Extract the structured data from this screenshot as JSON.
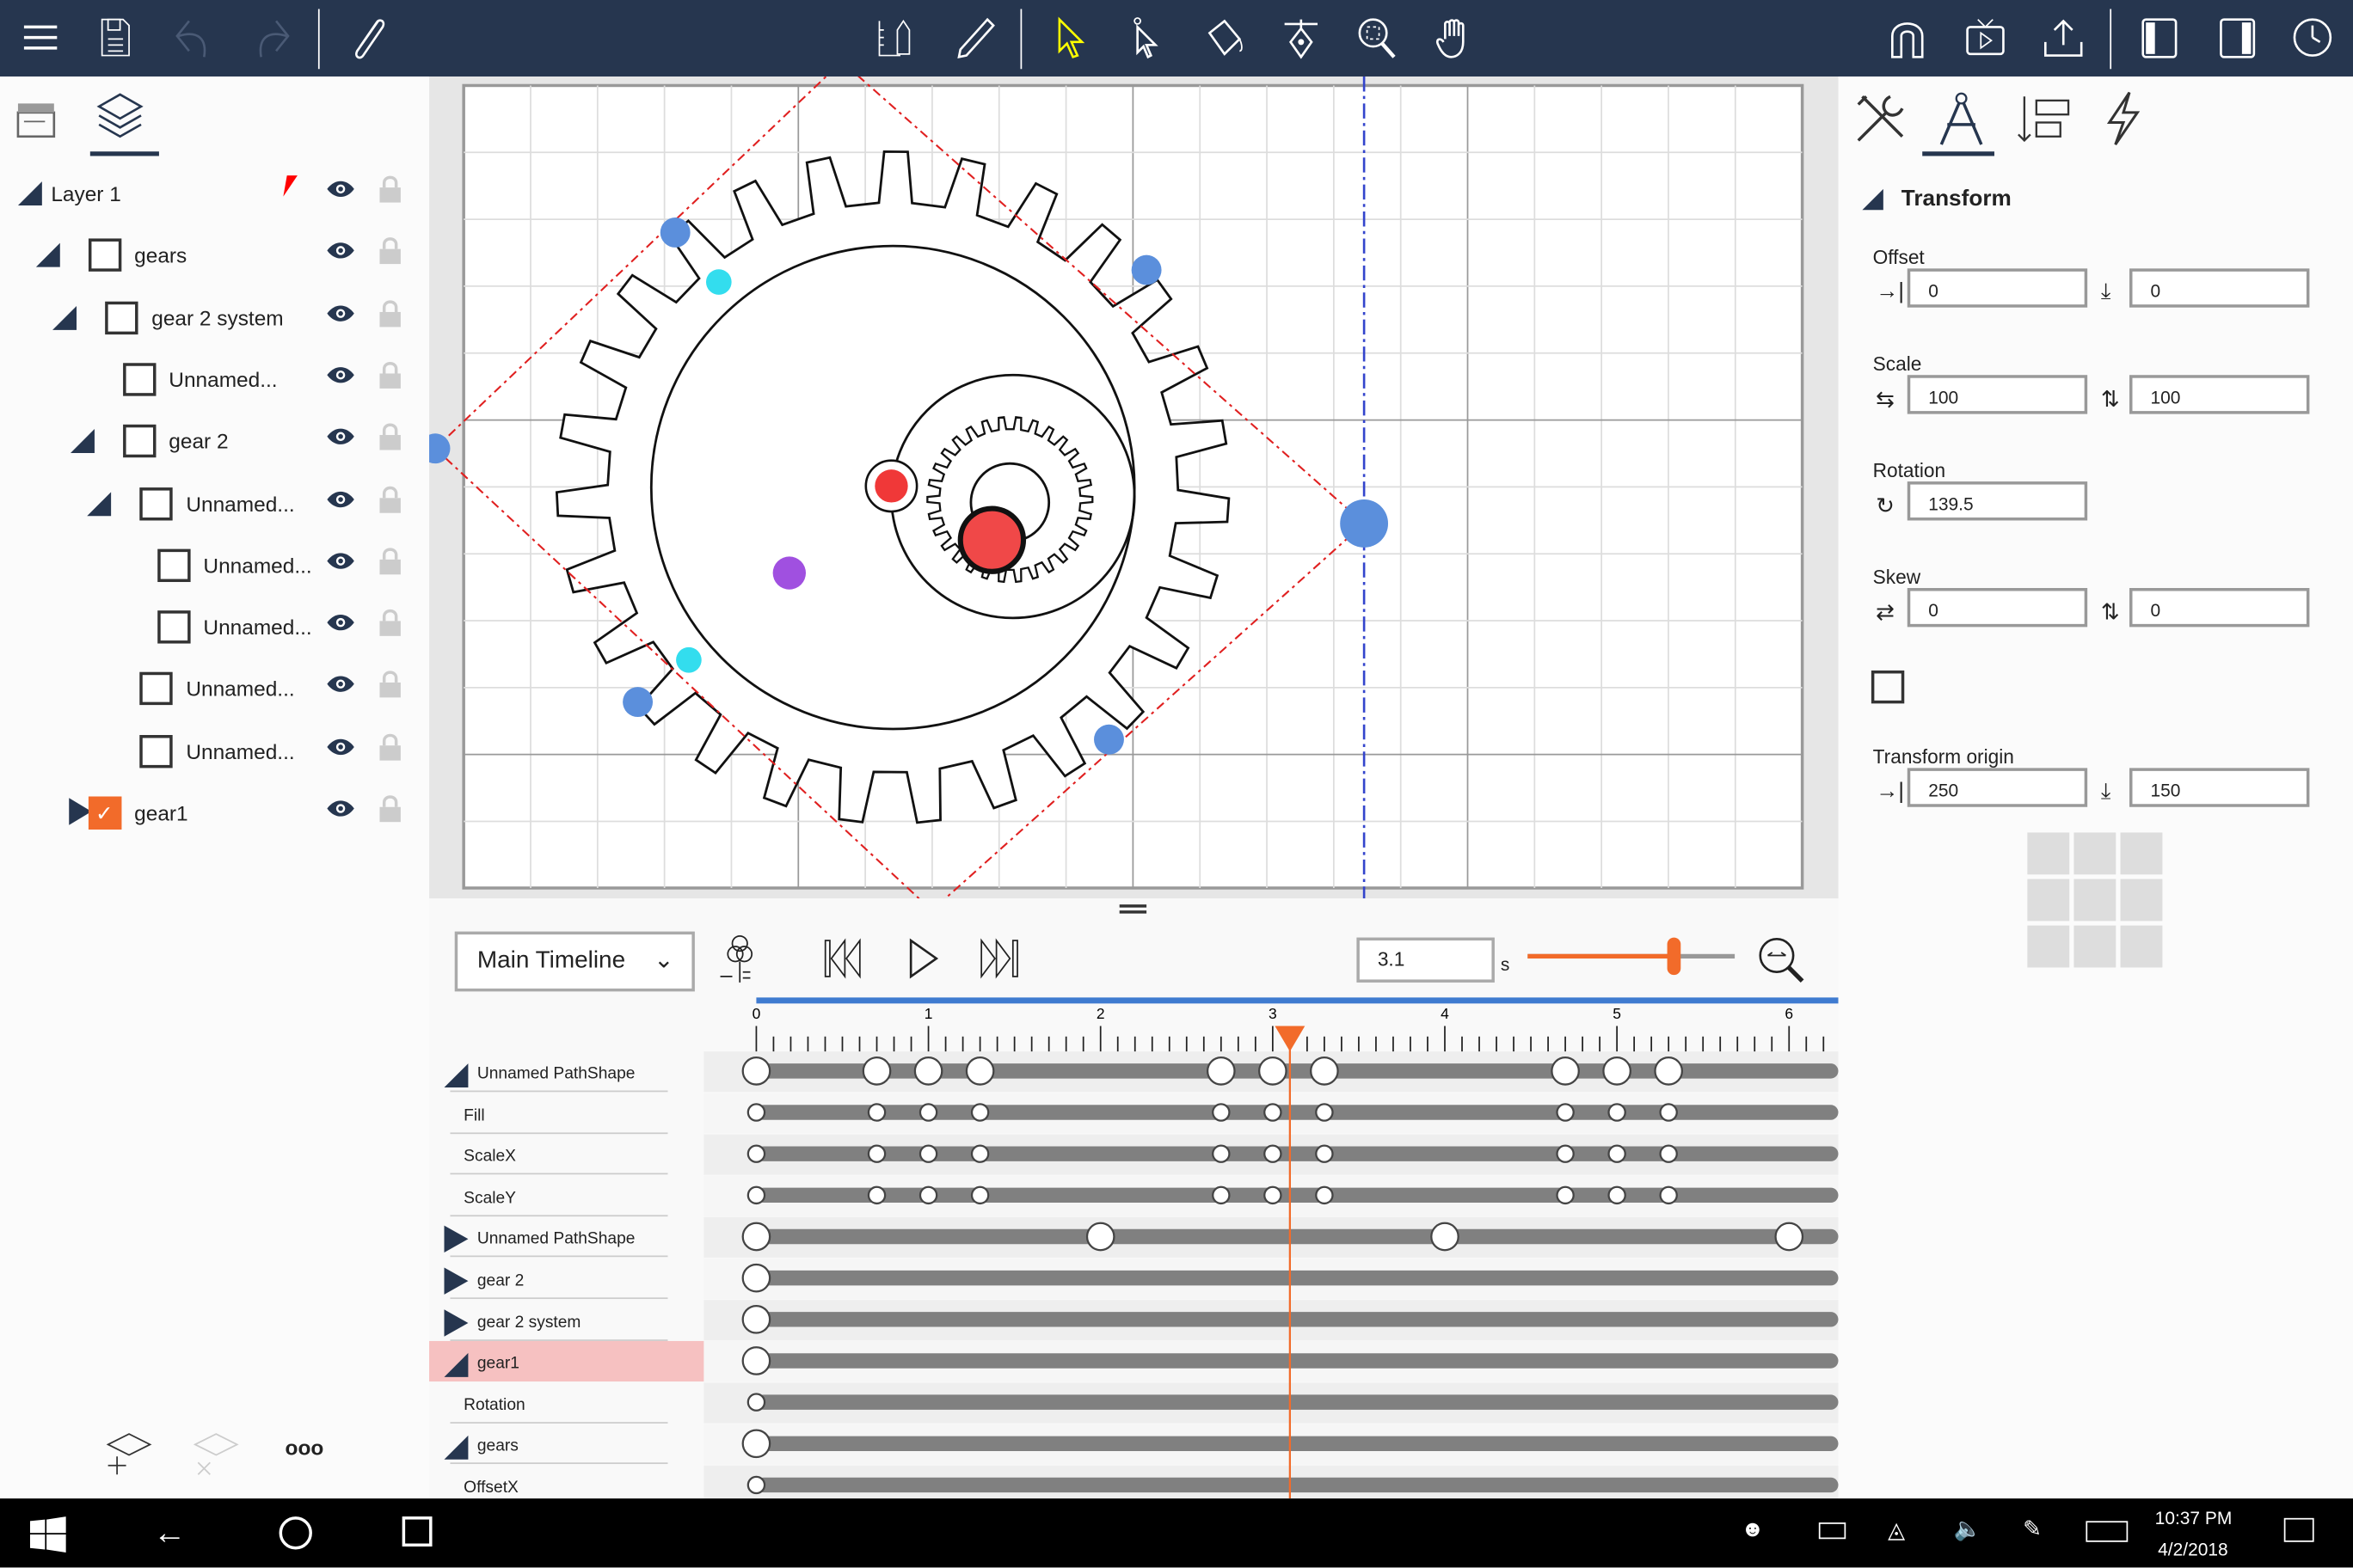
{
  "toolbar": {
    "left": [
      "menu-icon",
      "save-icon",
      "undo-icon",
      "redo-icon",
      "attach-icon"
    ],
    "center": [
      "ruler-pencil-icon",
      "pencil-icon",
      "select-arrow-icon",
      "direct-select-icon",
      "paint-bucket-icon",
      "pen-nib-icon",
      "zoom-icon",
      "hand-icon"
    ],
    "right": [
      "magnet-icon",
      "preview-icon",
      "export-icon",
      "left-panel-icon",
      "right-panel-icon",
      "timer-icon"
    ],
    "active_tool_color": "#ffff00",
    "bg": "#26364f"
  },
  "left_tabs": [
    "timeline-clapper-icon",
    "layers-icon"
  ],
  "layers": [
    {
      "label": "Layer 1",
      "indent": 0,
      "expanded": true,
      "checkbox": false,
      "pointer": true
    },
    {
      "label": "gears",
      "indent": 1,
      "expanded": true,
      "checkbox": true
    },
    {
      "label": "gear 2 system",
      "indent": 2,
      "expanded": true,
      "checkbox": true
    },
    {
      "label": "Unnamed...",
      "indent": 3,
      "expanded": null,
      "checkbox": true
    },
    {
      "label": "gear 2",
      "indent": 3,
      "expanded": true,
      "checkbox": true
    },
    {
      "label": "Unnamed...",
      "indent": 4,
      "expanded": true,
      "checkbox": true
    },
    {
      "label": "Unnamed...",
      "indent": 5,
      "expanded": null,
      "checkbox": true
    },
    {
      "label": "Unnamed...",
      "indent": 5,
      "expanded": null,
      "checkbox": true
    },
    {
      "label": "Unnamed...",
      "indent": 4,
      "expanded": null,
      "checkbox": true
    },
    {
      "label": "Unnamed...",
      "indent": 4,
      "expanded": null,
      "checkbox": true
    },
    {
      "label": "gear1",
      "indent": 1,
      "expanded": false,
      "checkbox": true,
      "checked": true
    }
  ],
  "left_bottom": [
    "add-layer-icon",
    "remove-layer-icon",
    "more-icon"
  ],
  "timeline": {
    "name": "Main Timeline",
    "time": "3.1",
    "unit": "s",
    "zoom_slider": 0.7,
    "current_time": 3.1,
    "ticks": [
      "0",
      "1",
      "2",
      "3",
      "4",
      "5",
      "6"
    ],
    "rows": [
      {
        "label": "Unnamed PathShape",
        "type": "group",
        "expanded": true,
        "keys": [
          0,
          0.7,
          1,
          1.3,
          2.7,
          3,
          3.3,
          4.7,
          5,
          5.3
        ]
      },
      {
        "label": "Fill",
        "type": "prop",
        "keys": [
          0,
          0.7,
          1,
          1.3,
          2.7,
          3,
          3.3,
          4.7,
          5,
          5.3
        ]
      },
      {
        "label": "ScaleX",
        "type": "prop",
        "keys": [
          0,
          0.7,
          1,
          1.3,
          2.7,
          3,
          3.3,
          4.7,
          5,
          5.3
        ]
      },
      {
        "label": "ScaleY",
        "type": "prop",
        "keys": [
          0,
          0.7,
          1,
          1.3,
          2.7,
          3,
          3.3,
          4.7,
          5,
          5.3
        ]
      },
      {
        "label": "Unnamed PathShape",
        "type": "group",
        "expanded": false,
        "keys": [
          0,
          2,
          4,
          6
        ]
      },
      {
        "label": "gear 2",
        "type": "group",
        "expanded": false,
        "keys": [
          0
        ]
      },
      {
        "label": "gear 2 system",
        "type": "group",
        "expanded": false,
        "keys": [
          0
        ]
      },
      {
        "label": "gear1",
        "type": "group",
        "expanded": true,
        "selected": true,
        "keys": [
          0
        ]
      },
      {
        "label": "Rotation",
        "type": "prop",
        "keys": [
          0
        ]
      },
      {
        "label": "gears",
        "type": "group",
        "expanded": true,
        "keys": [
          0
        ]
      },
      {
        "label": "OffsetX",
        "type": "prop",
        "keys": [
          0
        ]
      }
    ]
  },
  "right_tabs": [
    "tools-icon",
    "compass-icon",
    "align-icon",
    "lightning-icon"
  ],
  "transform": {
    "title": "Transform",
    "offset_label": "Offset",
    "offset_x": "0",
    "offset_y": "0",
    "scale_label": "Scale",
    "scale_x": "100",
    "scale_y": "100",
    "rotation_label": "Rotation",
    "rotation": "139.5",
    "skew_label": "Skew",
    "skew_x": "0",
    "skew_y": "0",
    "origin_label": "Transform origin",
    "origin_x": "250",
    "origin_y": "150"
  },
  "taskbar": {
    "time": "10:37 PM",
    "date": "4/2/2018"
  },
  "colors": {
    "accent": "#f26b2a",
    "handle": "#5b8fdc",
    "selection": "#f6c1c1"
  }
}
